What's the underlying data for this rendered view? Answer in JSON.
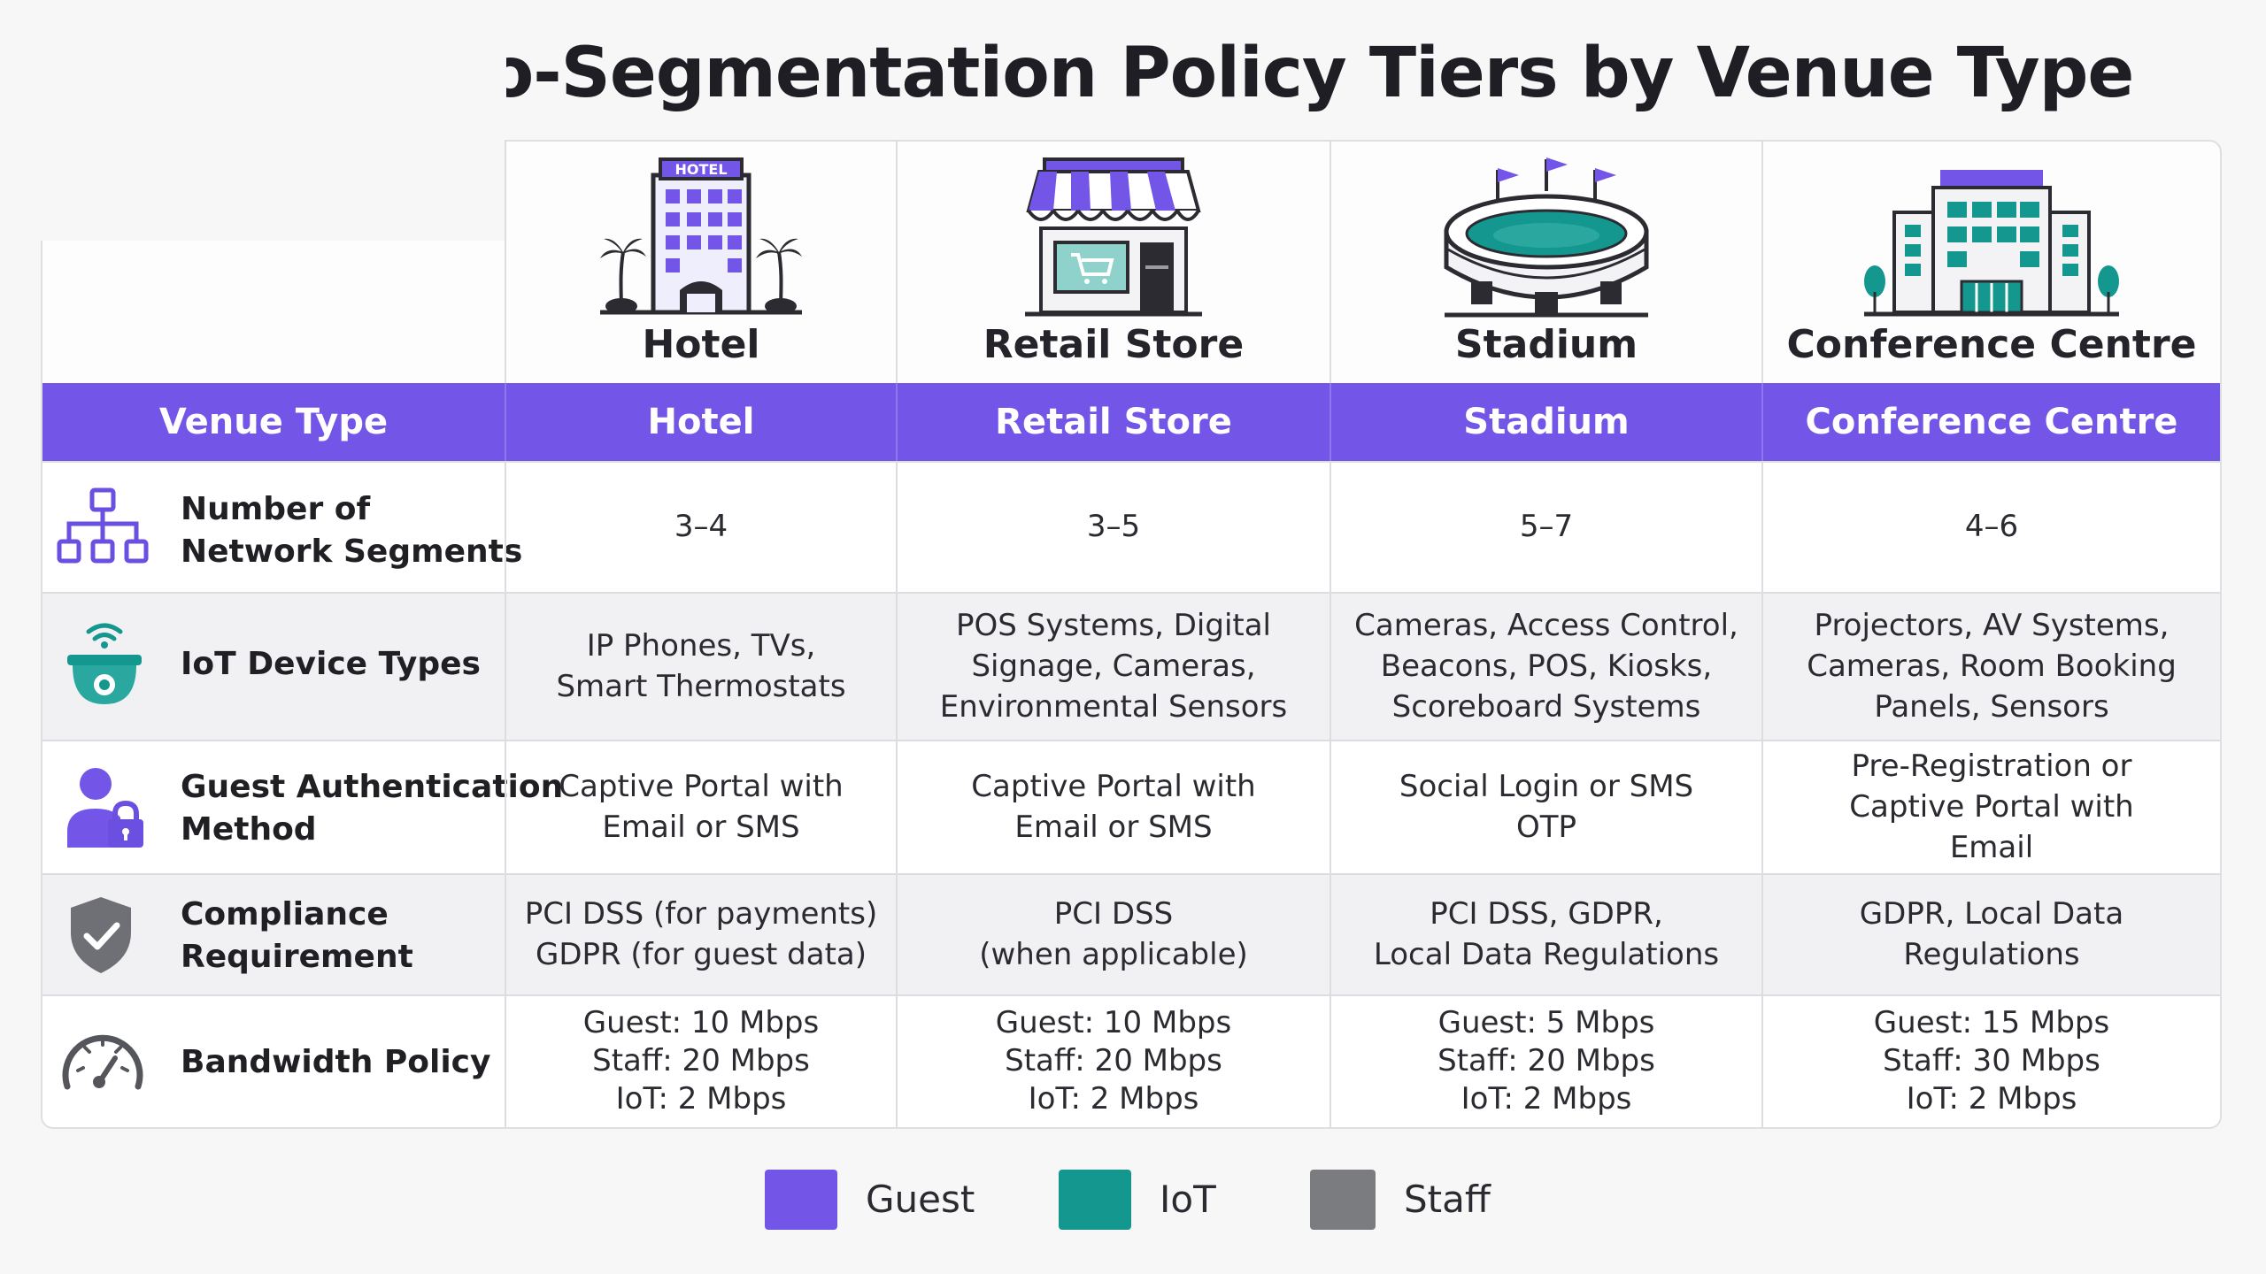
{
  "title": "WiFi Micro-Segmentation Policy Tiers by Venue Type",
  "colors": {
    "accent": "#7355e8",
    "iot": "#13978f",
    "staff": "#7b7c80",
    "guest": "#7355e8"
  },
  "venues": [
    {
      "name": "Hotel",
      "icon": "hotel-building-icon",
      "sign": "HOTEL"
    },
    {
      "name": "Retail Store",
      "icon": "retail-store-icon"
    },
    {
      "name": "Stadium",
      "icon": "stadium-icon"
    },
    {
      "name": "Conference Centre",
      "icon": "conference-centre-icon"
    }
  ],
  "header": {
    "label": "Venue Type",
    "columns": [
      "Hotel",
      "Retail Store",
      "Stadium",
      "Conference Centre"
    ]
  },
  "rows": [
    {
      "label": "Number of\nNetwork Segments",
      "icon": "network-hierarchy-icon",
      "values": [
        "3–4",
        "3–5",
        "5–7",
        "4–6"
      ]
    },
    {
      "label": "IoT Device Types",
      "icon": "iot-camera-icon",
      "values": [
        "IP Phones, TVs,\nSmart Thermostats",
        "POS Systems, Digital\nSignage, Cameras,\nEnvironmental Sensors",
        "Cameras, Access Control,\nBeacons, POS, Kiosks,\nScoreboard Systems",
        "Projectors, AV Systems,\nCameras, Room Booking\nPanels, Sensors"
      ]
    },
    {
      "label": "Guest Authentication\nMethod",
      "icon": "user-lock-icon",
      "values": [
        "Captive Portal with\nEmail or SMS",
        "Captive Portal with\nEmail or SMS",
        "Social Login or SMS\nOTP",
        "Pre-Registration or\nCaptive Portal with\nEmail"
      ]
    },
    {
      "label": "Compliance\nRequirement",
      "icon": "shield-check-icon",
      "values": [
        "PCI DSS  (for payments)\nGDPR  (for guest data)",
        "PCI DSS\n(when applicable)",
        "PCI DSS, GDPR,\nLocal Data Regulations",
        "GDPR, Local Data\nRegulations"
      ]
    },
    {
      "label": "Bandwidth Policy",
      "icon": "speedometer-icon",
      "values": [
        "Guest:  10 Mbps\nStaff:  20 Mbps\nIoT:  2 Mbps",
        "Guest:  10 Mbps\nStaff:  20 Mbps\nIoT:  2 Mbps",
        "Guest:  5 Mbps\nStaff:  20 Mbps\nIoT:  2 Mbps",
        "Guest:  15 Mbps\nStaff:  30 Mbps\nIoT:  2 Mbps"
      ]
    }
  ],
  "legend": [
    {
      "label": "Guest",
      "color": "#7355e8"
    },
    {
      "label": "IoT",
      "color": "#13978f"
    },
    {
      "label": "Staff",
      "color": "#7b7c80"
    }
  ]
}
